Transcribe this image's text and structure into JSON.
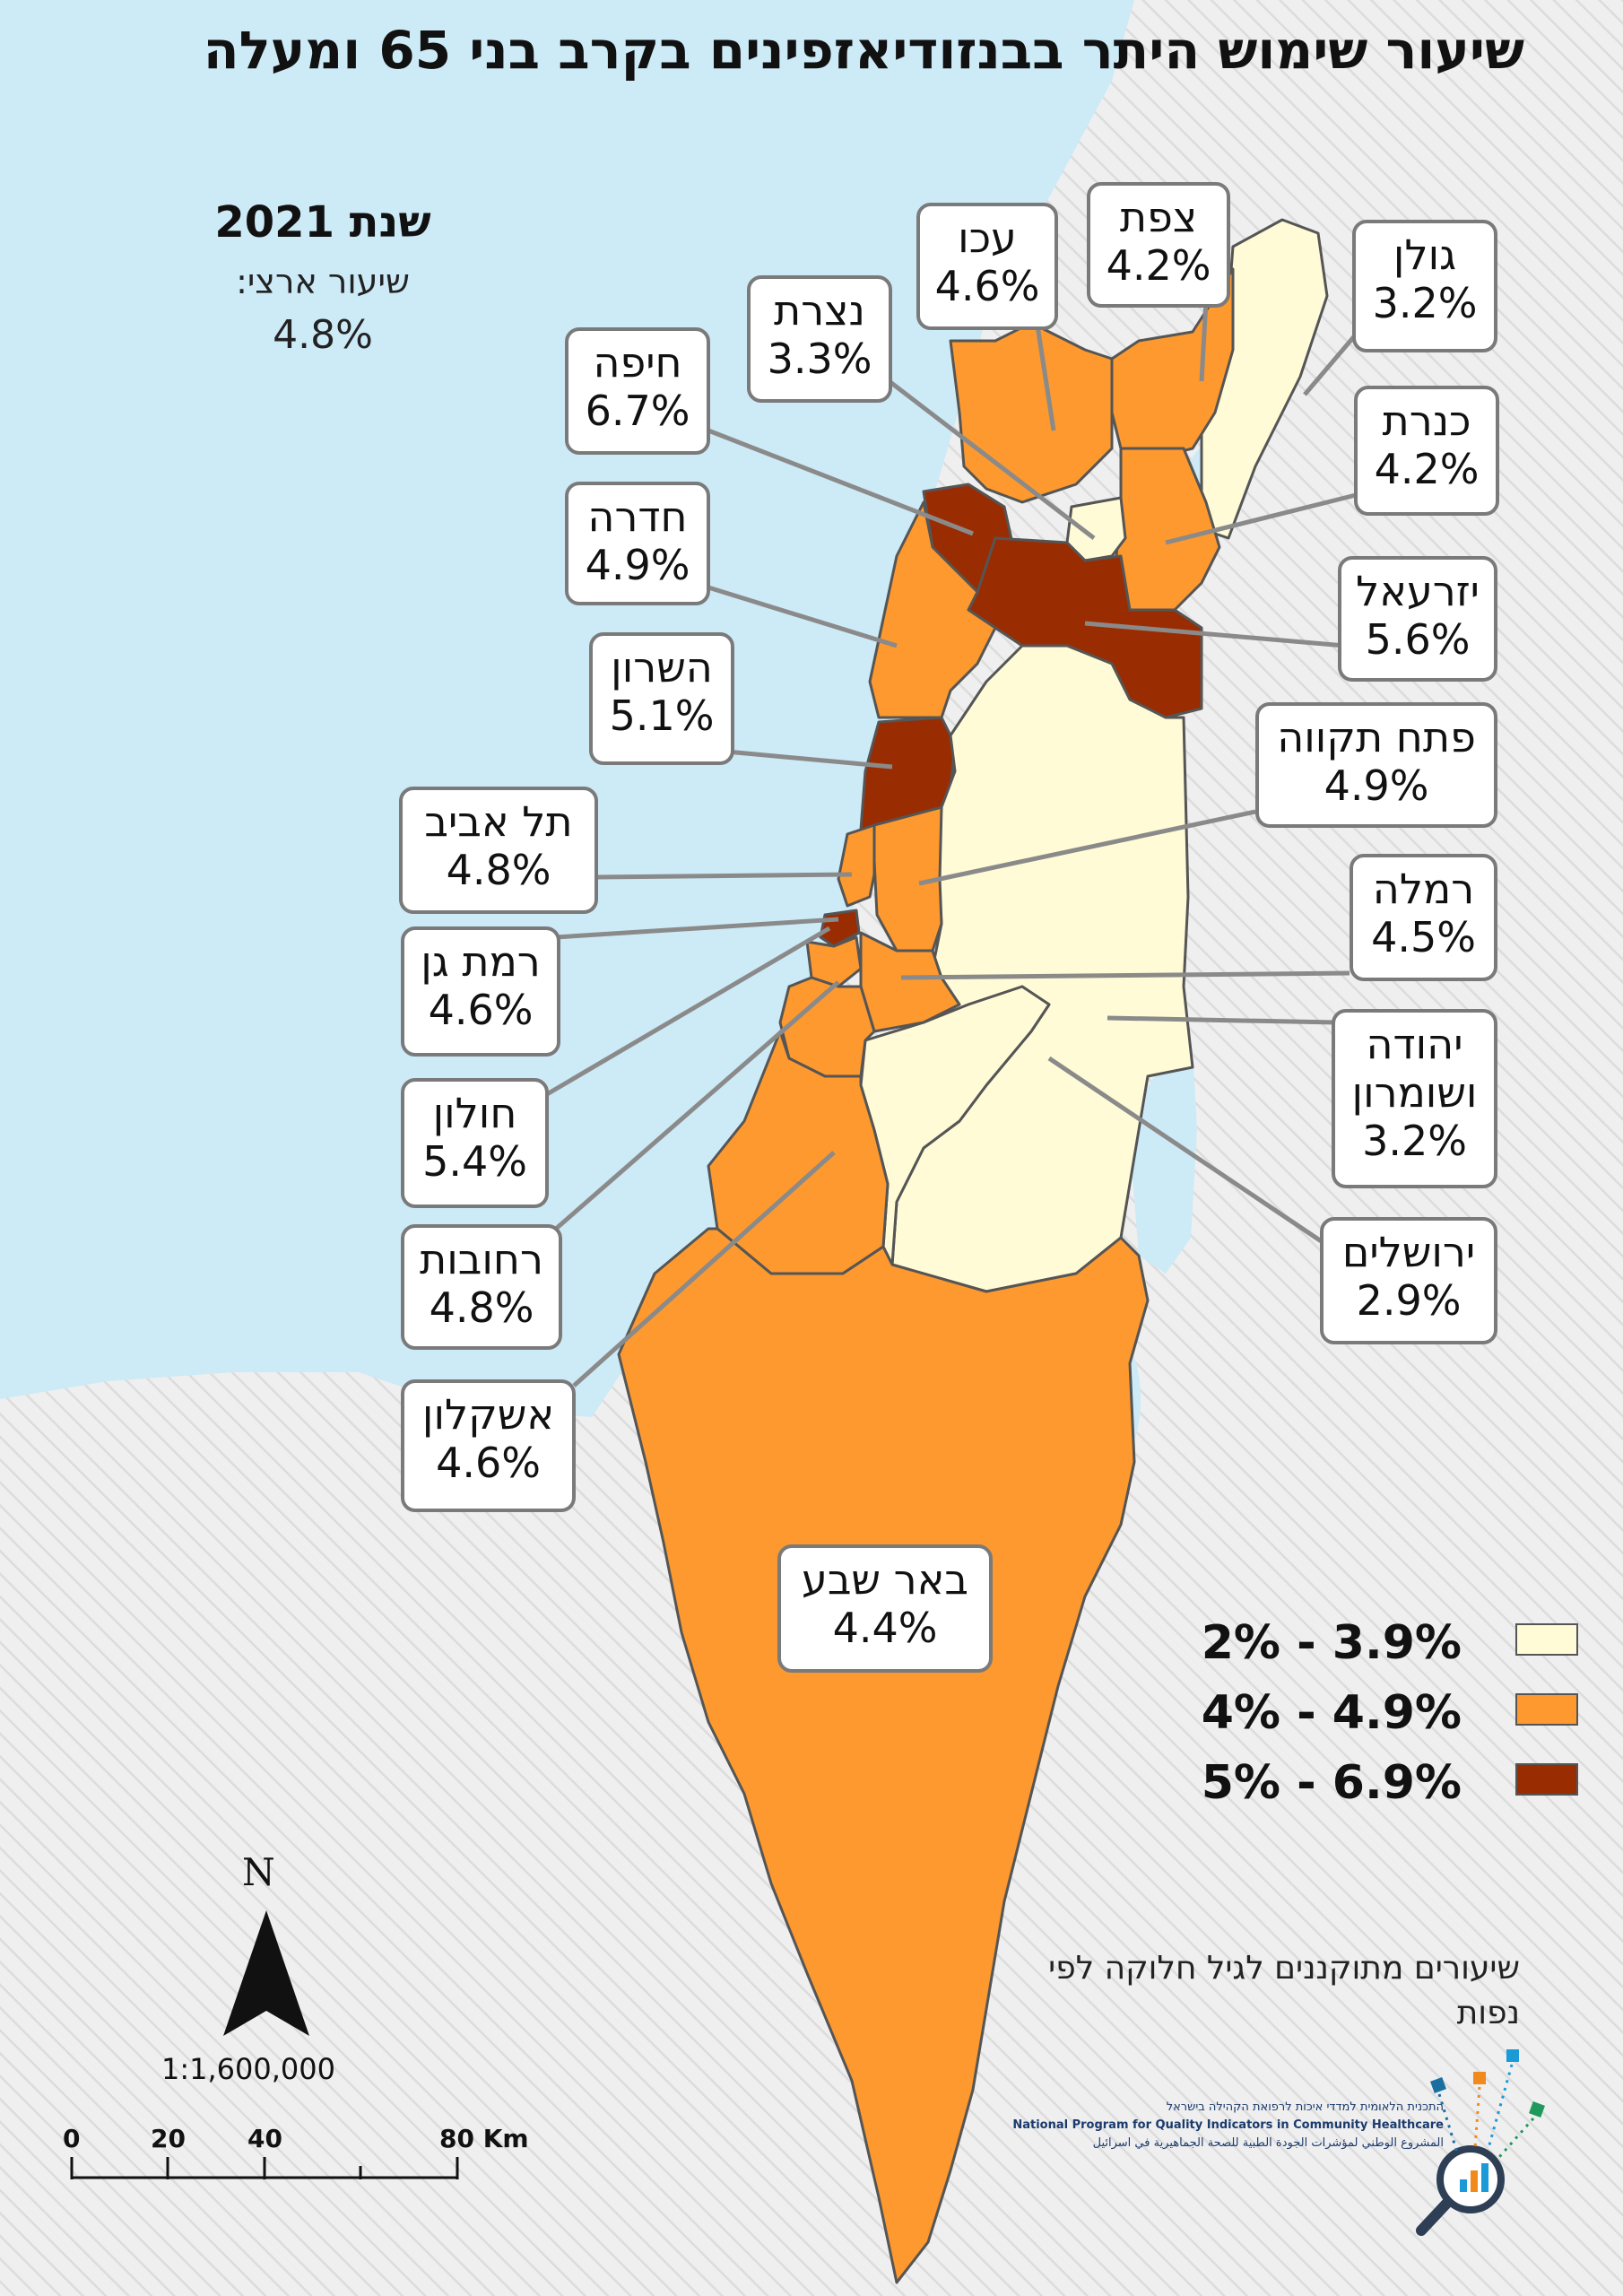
{
  "title": "שיעור שימוש היתר בבנזודיאזפינים בקרב בני 65 ומעלה",
  "year_label": "שנת 2021",
  "national_rate_label": "שיעור ארצי:",
  "national_rate_value": "4.8%",
  "colors": {
    "sea": "#cdeaf7",
    "land_outside": "#efefef",
    "low": "#fffbd6",
    "mid": "#fd992e",
    "high": "#9a2c02",
    "border": "#555555",
    "leader": "#8a8a8a"
  },
  "legend": [
    {
      "label": "2% - 3.9%",
      "color": "#fffbd6"
    },
    {
      "label": "4% - 4.9%",
      "color": "#fd992e"
    },
    {
      "label": "5% - 6.9%",
      "color": "#9a2c02"
    }
  ],
  "districts": [
    {
      "id": "golan",
      "name": "גולן",
      "value": "3.2%",
      "category": "low"
    },
    {
      "id": "kinneret",
      "name": "כנרת",
      "value": "4.2%",
      "category": "mid"
    },
    {
      "id": "safed",
      "name": "צפת",
      "value": "4.2%",
      "category": "mid"
    },
    {
      "id": "acre",
      "name": "עכו",
      "value": "4.6%",
      "category": "mid"
    },
    {
      "id": "nazareth",
      "name": "נצרת",
      "value": "3.3%",
      "category": "low"
    },
    {
      "id": "haifa",
      "name": "חיפה",
      "value": "6.7%",
      "category": "high"
    },
    {
      "id": "hadera",
      "name": "חדרה",
      "value": "4.9%",
      "category": "mid"
    },
    {
      "id": "jezreel",
      "name": "יזרעאל",
      "value": "5.6%",
      "category": "high"
    },
    {
      "id": "sharon",
      "name": "השרון",
      "value": "5.1%",
      "category": "high"
    },
    {
      "id": "petah_tikva",
      "name": "פתח תקווה",
      "value": "4.9%",
      "category": "mid"
    },
    {
      "id": "tel_aviv",
      "name": "תל אביב",
      "value": "4.8%",
      "category": "mid"
    },
    {
      "id": "ramla",
      "name": "רמלה",
      "value": "4.5%",
      "category": "mid"
    },
    {
      "id": "ramat_gan",
      "name": "רמת גן",
      "value": "4.6%",
      "category": "mid"
    },
    {
      "id": "judea_samaria",
      "name": "יהודה ושומרון",
      "value": "3.2%",
      "category": "low"
    },
    {
      "id": "holon",
      "name": "חולון",
      "value": "5.4%",
      "category": "high"
    },
    {
      "id": "jerusalem",
      "name": "ירושלים",
      "value": "2.9%",
      "category": "low"
    },
    {
      "id": "rehovot",
      "name": "רחובות",
      "value": "4.8%",
      "category": "mid"
    },
    {
      "id": "ashkelon",
      "name": "אשקלון",
      "value": "4.6%",
      "category": "mid"
    },
    {
      "id": "beersheba",
      "name": "באר שבע",
      "value": "4.4%",
      "category": "mid"
    }
  ],
  "north_label": "N",
  "scale_ratio": "1:1,600,000",
  "scalebar_labels": [
    "0",
    "20",
    "40",
    "80 Km"
  ],
  "footnote": "שיעורים מתוקננים לגיל חלוקה לפי נפות",
  "logo": {
    "hebrew": "התכנית הלאומית למדדי איכות לרפואת הקהילה בישראל",
    "english": "National Program for Quality Indicators in Community Healthcare",
    "arabic": "المشروع الوطني لمؤشرات الجودة الطبية للصحة الجماهيرية في اسرائيل"
  }
}
